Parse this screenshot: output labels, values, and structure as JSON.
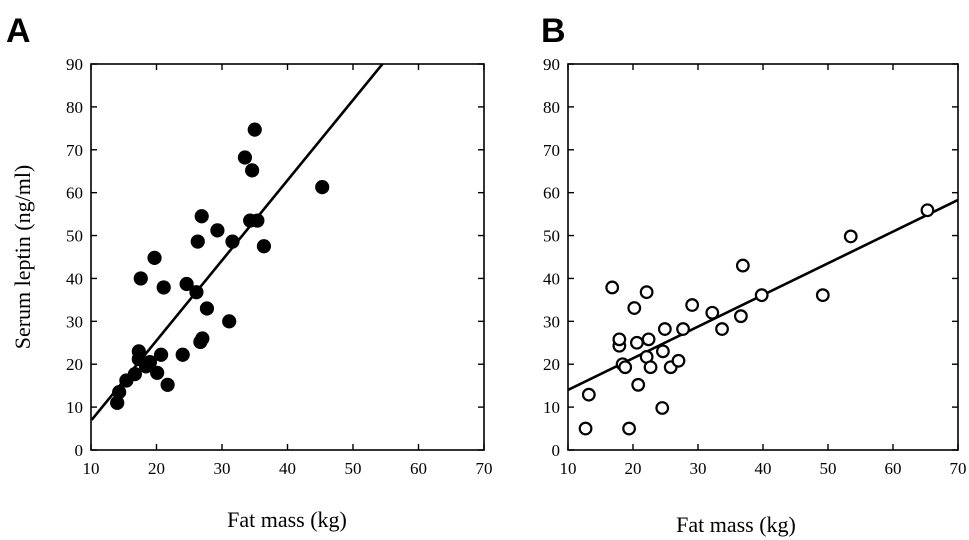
{
  "chart_data": [
    {
      "panel": "A",
      "type": "scatter",
      "marker": "filled",
      "title": "",
      "xlabel": "Fat mass (kg)",
      "ylabel": "Serum leptin (ng/ml)",
      "xlim": [
        10,
        70
      ],
      "ylim": [
        0,
        90
      ],
      "xticks": [
        10,
        20,
        30,
        40,
        50,
        60,
        70
      ],
      "yticks": [
        0,
        10,
        20,
        30,
        40,
        50,
        60,
        70,
        80,
        90
      ],
      "points": [
        {
          "x": 14.0,
          "y": 11.0
        },
        {
          "x": 14.3,
          "y": 13.5
        },
        {
          "x": 15.4,
          "y": 16.2
        },
        {
          "x": 16.7,
          "y": 17.7
        },
        {
          "x": 17.3,
          "y": 21.2
        },
        {
          "x": 17.3,
          "y": 23.0
        },
        {
          "x": 17.6,
          "y": 40.0
        },
        {
          "x": 18.4,
          "y": 19.5
        },
        {
          "x": 19.0,
          "y": 20.5
        },
        {
          "x": 19.7,
          "y": 44.8
        },
        {
          "x": 20.1,
          "y": 18.0
        },
        {
          "x": 20.7,
          "y": 22.2
        },
        {
          "x": 21.1,
          "y": 37.9
        },
        {
          "x": 21.7,
          "y": 15.2
        },
        {
          "x": 24.0,
          "y": 22.2
        },
        {
          "x": 24.6,
          "y": 38.7
        },
        {
          "x": 26.1,
          "y": 36.8
        },
        {
          "x": 26.3,
          "y": 48.6
        },
        {
          "x": 26.7,
          "y": 25.2
        },
        {
          "x": 26.9,
          "y": 54.5
        },
        {
          "x": 27.0,
          "y": 26.0
        },
        {
          "x": 27.7,
          "y": 33.0
        },
        {
          "x": 29.3,
          "y": 51.2
        },
        {
          "x": 31.1,
          "y": 30.0
        },
        {
          "x": 31.6,
          "y": 48.6
        },
        {
          "x": 33.5,
          "y": 68.2
        },
        {
          "x": 34.3,
          "y": 53.5
        },
        {
          "x": 34.6,
          "y": 65.2
        },
        {
          "x": 35.0,
          "y": 74.7
        },
        {
          "x": 35.4,
          "y": 53.5
        },
        {
          "x": 36.4,
          "y": 47.5
        },
        {
          "x": 45.3,
          "y": 61.3
        }
      ],
      "fit_line": {
        "x": [
          10.1,
          54.5
        ],
        "y": [
          7.0,
          90.0
        ]
      }
    },
    {
      "panel": "B",
      "type": "scatter",
      "marker": "open",
      "title": "",
      "xlabel": "Fat mass (kg)",
      "ylabel": "",
      "xlim": [
        10,
        70
      ],
      "ylim": [
        0,
        90
      ],
      "xticks": [
        10,
        20,
        30,
        40,
        50,
        60,
        70
      ],
      "yticks": [
        0,
        10,
        20,
        30,
        40,
        50,
        60,
        70,
        80,
        90
      ],
      "points": [
        {
          "x": 12.7,
          "y": 5.0
        },
        {
          "x": 13.2,
          "y": 12.9
        },
        {
          "x": 16.8,
          "y": 37.9
        },
        {
          "x": 17.9,
          "y": 24.3
        },
        {
          "x": 17.9,
          "y": 25.8
        },
        {
          "x": 18.4,
          "y": 20.0
        },
        {
          "x": 18.8,
          "y": 19.3
        },
        {
          "x": 19.4,
          "y": 5.0
        },
        {
          "x": 20.2,
          "y": 33.1
        },
        {
          "x": 20.6,
          "y": 25.0
        },
        {
          "x": 20.8,
          "y": 15.2
        },
        {
          "x": 22.1,
          "y": 36.8
        },
        {
          "x": 22.1,
          "y": 21.7
        },
        {
          "x": 22.4,
          "y": 25.8
        },
        {
          "x": 22.7,
          "y": 19.3
        },
        {
          "x": 24.5,
          "y": 9.8
        },
        {
          "x": 24.6,
          "y": 23.0
        },
        {
          "x": 24.9,
          "y": 28.2
        },
        {
          "x": 25.8,
          "y": 19.3
        },
        {
          "x": 27.0,
          "y": 20.8
        },
        {
          "x": 27.7,
          "y": 28.2
        },
        {
          "x": 29.1,
          "y": 33.8
        },
        {
          "x": 32.2,
          "y": 32.0
        },
        {
          "x": 33.7,
          "y": 28.2
        },
        {
          "x": 36.6,
          "y": 31.2
        },
        {
          "x": 36.9,
          "y": 43.0
        },
        {
          "x": 39.8,
          "y": 36.1
        },
        {
          "x": 49.2,
          "y": 36.1
        },
        {
          "x": 53.5,
          "y": 49.8
        },
        {
          "x": 65.3,
          "y": 55.9
        }
      ],
      "fit_line": {
        "x": [
          10.0,
          70.0
        ],
        "y": [
          14.0,
          58.3
        ]
      }
    }
  ]
}
